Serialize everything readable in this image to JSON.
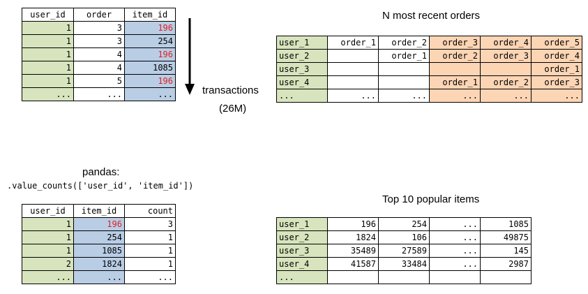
{
  "transactions": {
    "headers": [
      "user_id",
      "order",
      "item_id"
    ],
    "rows": [
      [
        "1",
        "3",
        "196"
      ],
      [
        "1",
        "3",
        "254"
      ],
      [
        "1",
        "4",
        "196"
      ],
      [
        "1",
        "4",
        "1085"
      ],
      [
        "1",
        "5",
        "196"
      ],
      [
        "...",
        "...",
        "..."
      ]
    ]
  },
  "arrow": {
    "label_line1": "transactions",
    "label_line2": "(26M)"
  },
  "recent_orders": {
    "title": "N most recent orders",
    "rows": [
      [
        "user_1",
        "order_1",
        "order_2",
        "order_3",
        "order_4",
        "order_5"
      ],
      [
        "user_2",
        "",
        "order_1",
        "order_2",
        "order_3",
        "order_4"
      ],
      [
        "user_3",
        "",
        "",
        "",
        "",
        "order_1"
      ],
      [
        "user_4",
        "",
        "",
        "order_1",
        "order_2",
        "order_3"
      ],
      [
        "...",
        "...",
        "...",
        "...",
        "...",
        "..."
      ]
    ]
  },
  "pandas": {
    "title": "pandas:",
    "code": ".value_counts(['user_id', 'item_id'])"
  },
  "value_counts": {
    "headers": [
      "user_id",
      "item_id",
      "count"
    ],
    "rows": [
      [
        "1",
        "196",
        "3"
      ],
      [
        "1",
        "254",
        "1"
      ],
      [
        "1",
        "1085",
        "1"
      ],
      [
        "2",
        "1824",
        "1"
      ],
      [
        "...",
        "...",
        "..."
      ]
    ]
  },
  "popular_items": {
    "title": "Top 10 popular items",
    "rows": [
      [
        "user_1",
        "196",
        "254",
        "...",
        "1085"
      ],
      [
        "user_2",
        "1824",
        "106",
        "...",
        "49875"
      ],
      [
        "user_3",
        "35489",
        "27589",
        "...",
        "145"
      ],
      [
        "user_4",
        "41587",
        "33484",
        "...",
        "2987"
      ],
      [
        "...",
        "",
        "",
        "",
        ""
      ]
    ]
  },
  "colors": {
    "user": "#d7e4bd",
    "item": "#b9cde5",
    "recent": "#fcd5b5",
    "highlight": "#e02020"
  }
}
